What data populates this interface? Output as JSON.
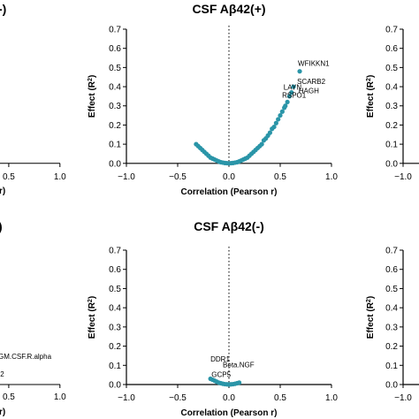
{
  "colors": {
    "points": "#2a95a8",
    "axis": "#000000",
    "zero_line": "#000000"
  },
  "chart_data": [
    {
      "id": "top-center",
      "type": "scatter",
      "title": "CSF Aβ42(+)",
      "xlabel": "Correlation (Pearson r)",
      "ylabel": "Effect (R²)",
      "xlim": [
        -1.0,
        1.0
      ],
      "ylim": [
        0.0,
        0.7
      ],
      "x_ticks": [
        -1.0,
        -0.5,
        0.0,
        0.5,
        1.0
      ],
      "x_tick_labels": [
        "−1.0",
        "−0.5",
        "0.0",
        "0.5",
        "1.0"
      ],
      "y_ticks": [
        0.0,
        0.1,
        0.2,
        0.3,
        0.4,
        0.5,
        0.6,
        0.7
      ],
      "y_tick_labels": [
        "0.0",
        "0.1",
        "0.2",
        "0.3",
        "0.4",
        "0.5",
        "0.6",
        "0.7"
      ],
      "zero_line": "dotted vertical at x=0",
      "points": [
        {
          "x": -0.32,
          "y": 0.1
        },
        {
          "x": -0.3,
          "y": 0.09
        },
        {
          "x": -0.28,
          "y": 0.08
        },
        {
          "x": -0.26,
          "y": 0.07
        },
        {
          "x": -0.24,
          "y": 0.06
        },
        {
          "x": -0.22,
          "y": 0.05
        },
        {
          "x": -0.2,
          "y": 0.04
        },
        {
          "x": -0.18,
          "y": 0.03
        },
        {
          "x": -0.16,
          "y": 0.025
        },
        {
          "x": -0.14,
          "y": 0.02
        },
        {
          "x": -0.12,
          "y": 0.015
        },
        {
          "x": -0.1,
          "y": 0.01
        },
        {
          "x": -0.08,
          "y": 0.006
        },
        {
          "x": -0.06,
          "y": 0.004
        },
        {
          "x": -0.04,
          "y": 0.002
        },
        {
          "x": -0.02,
          "y": 0.001
        },
        {
          "x": 0.0,
          "y": 0.0
        },
        {
          "x": 0.02,
          "y": 0.001
        },
        {
          "x": 0.04,
          "y": 0.002
        },
        {
          "x": 0.06,
          "y": 0.004
        },
        {
          "x": 0.08,
          "y": 0.006
        },
        {
          "x": 0.1,
          "y": 0.01
        },
        {
          "x": 0.12,
          "y": 0.015
        },
        {
          "x": 0.14,
          "y": 0.02
        },
        {
          "x": 0.16,
          "y": 0.025
        },
        {
          "x": 0.18,
          "y": 0.03
        },
        {
          "x": 0.2,
          "y": 0.04
        },
        {
          "x": 0.22,
          "y": 0.05
        },
        {
          "x": 0.24,
          "y": 0.06
        },
        {
          "x": 0.26,
          "y": 0.07
        },
        {
          "x": 0.28,
          "y": 0.08
        },
        {
          "x": 0.3,
          "y": 0.09
        },
        {
          "x": 0.32,
          "y": 0.1
        },
        {
          "x": 0.34,
          "y": 0.12
        },
        {
          "x": 0.36,
          "y": 0.13
        },
        {
          "x": 0.38,
          "y": 0.145
        },
        {
          "x": 0.4,
          "y": 0.16
        },
        {
          "x": 0.42,
          "y": 0.18
        },
        {
          "x": 0.44,
          "y": 0.19
        },
        {
          "x": 0.46,
          "y": 0.21
        },
        {
          "x": 0.48,
          "y": 0.23
        },
        {
          "x": 0.5,
          "y": 0.25
        },
        {
          "x": 0.52,
          "y": 0.27
        },
        {
          "x": 0.54,
          "y": 0.29
        },
        {
          "x": 0.55,
          "y": 0.3
        },
        {
          "x": 0.57,
          "y": 0.32
        },
        {
          "x": 0.59,
          "y": 0.35
        },
        {
          "x": 0.61,
          "y": 0.37
        },
        {
          "x": 0.63,
          "y": 0.4
        },
        {
          "x": 0.69,
          "y": 0.48
        }
      ],
      "annotations": [
        {
          "text": "WFIKKN1",
          "x": 0.69,
          "y": 0.48
        },
        {
          "text": "SCARB2",
          "x": 0.63,
          "y": 0.4
        },
        {
          "text": "LAYN",
          "x": 0.55,
          "y": 0.3
        },
        {
          "text": "RSPO1",
          "x": 0.57,
          "y": 0.32
        },
        {
          "text": "HAGH",
          "x": 0.61,
          "y": 0.37
        }
      ]
    },
    {
      "id": "bottom-center",
      "type": "scatter",
      "title": "CSF Aβ42(-)",
      "xlabel": "Correlation (Pearson r)",
      "ylabel": "Effect (R²)",
      "xlim": [
        -1.0,
        1.0
      ],
      "ylim": [
        0.0,
        0.7
      ],
      "x_ticks": [
        -1.0,
        -0.5,
        0.0,
        0.5,
        1.0
      ],
      "x_tick_labels": [
        "−1.0",
        "−0.5",
        "0.0",
        "0.5",
        "1.0"
      ],
      "y_ticks": [
        0.0,
        0.1,
        0.2,
        0.3,
        0.4,
        0.5,
        0.6,
        0.7
      ],
      "y_tick_labels": [
        "0.0",
        "0.1",
        "0.2",
        "0.3",
        "0.4",
        "0.5",
        "0.6",
        "0.7"
      ],
      "zero_line": "dotted vertical at x=0",
      "points": [
        {
          "x": -0.18,
          "y": 0.03
        },
        {
          "x": -0.16,
          "y": 0.025
        },
        {
          "x": -0.14,
          "y": 0.02
        },
        {
          "x": -0.12,
          "y": 0.015
        },
        {
          "x": -0.1,
          "y": 0.01
        },
        {
          "x": -0.08,
          "y": 0.007
        },
        {
          "x": -0.06,
          "y": 0.004
        },
        {
          "x": -0.04,
          "y": 0.002
        },
        {
          "x": -0.02,
          "y": 0.001
        },
        {
          "x": 0.0,
          "y": 0.0
        },
        {
          "x": 0.02,
          "y": 0.001
        },
        {
          "x": 0.04,
          "y": 0.002
        },
        {
          "x": 0.06,
          "y": 0.004
        },
        {
          "x": 0.08,
          "y": 0.007
        },
        {
          "x": 0.1,
          "y": 0.01
        }
      ],
      "annotations": [
        {
          "text": "DDR1",
          "x": -0.18,
          "y": 0.12
        },
        {
          "text": "Beta.NGF",
          "x": -0.06,
          "y": 0.09
        },
        {
          "text": "GCP5",
          "x": -0.17,
          "y": 0.04
        }
      ]
    }
  ],
  "partial_panels": {
    "top_left_title": "-)",
    "top_left_xlabel_tail": "r)",
    "top_left_ticks": [
      "0.5",
      "1.0"
    ],
    "bottom_left_title": ")",
    "bottom_left_annotations": [
      "GM.CSF.R.alpha",
      ".2"
    ],
    "bottom_left_ticks": [
      "0.5",
      "1.0"
    ],
    "bottom_left_xlabel_tail": "r)",
    "right_ylabel": "Effect (R²)",
    "right_y_ticks": [
      "0.0",
      "0.1",
      "0.2",
      "0.3",
      "0.4",
      "0.5",
      "0.6",
      "0.7"
    ],
    "right_x_ticks": [
      "−1.0"
    ]
  }
}
